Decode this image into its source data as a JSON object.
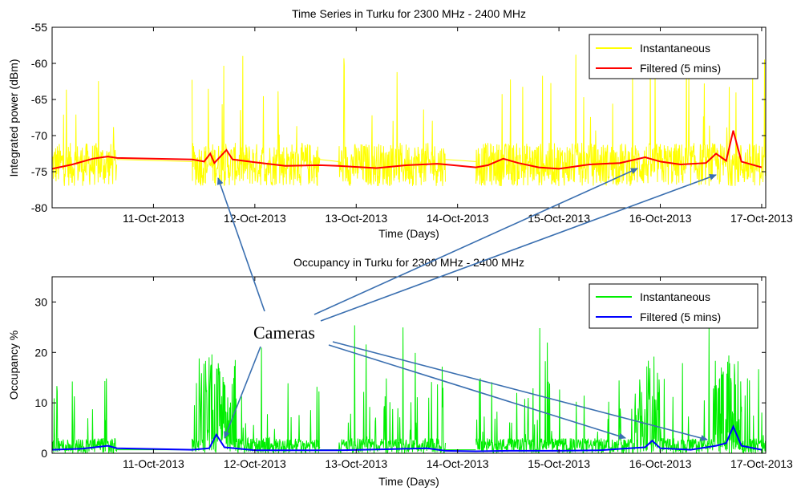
{
  "chart_data": [
    {
      "type": "line",
      "title": "Time Series in Turku for 2300 MHz - 2400 MHz",
      "xlabel": "Time (Days)",
      "ylabel": "Integrated power (dBm)",
      "ylim": [
        -80,
        -55
      ],
      "yticks": [
        "-55",
        "-60",
        "-65",
        "-70",
        "-75",
        "-80"
      ],
      "xticks": [
        "11-Oct-2013",
        "12-Oct-2013",
        "13-Oct-2013",
        "14-Oct-2013",
        "15-Oct-2013",
        "16-Oct-2013",
        "17-Oct-2013"
      ],
      "legend_position": "top-right",
      "series": [
        {
          "name": "Instantaneous",
          "color": "#ffff00",
          "gaps_days": [
            [
              10.64,
              11.38
            ],
            [
              12.64,
              12.82
            ],
            [
              13.88,
              14.18
            ]
          ],
          "baseline_dBm": -74.5,
          "spread_dBm": [
            -77,
            -71
          ],
          "spike_max_dBm": -58.5
        },
        {
          "name": "Filtered (5 mins)",
          "color": "#ff0000",
          "points": [
            [
              10.0,
              -74.6
            ],
            [
              10.2,
              -74.0
            ],
            [
              10.4,
              -73.2
            ],
            [
              10.55,
              -72.9
            ],
            [
              10.64,
              -73.1
            ],
            [
              11.38,
              -73.3
            ],
            [
              11.5,
              -73.6
            ],
            [
              11.56,
              -72.5
            ],
            [
              11.6,
              -73.8
            ],
            [
              11.72,
              -72.0
            ],
            [
              11.78,
              -73.3
            ],
            [
              12.0,
              -73.7
            ],
            [
              12.3,
              -74.2
            ],
            [
              12.64,
              -74.1
            ],
            [
              12.82,
              -74.2
            ],
            [
              13.2,
              -74.5
            ],
            [
              13.5,
              -74.1
            ],
            [
              13.8,
              -73.9
            ],
            [
              13.88,
              -74.0
            ],
            [
              14.18,
              -74.4
            ],
            [
              14.3,
              -74.1
            ],
            [
              14.45,
              -73.2
            ],
            [
              14.6,
              -73.8
            ],
            [
              14.8,
              -74.4
            ],
            [
              15.0,
              -74.6
            ],
            [
              15.3,
              -74.0
            ],
            [
              15.6,
              -73.8
            ],
            [
              15.85,
              -73.0
            ],
            [
              16.0,
              -73.6
            ],
            [
              16.2,
              -74.0
            ],
            [
              16.45,
              -73.8
            ],
            [
              16.55,
              -72.5
            ],
            [
              16.65,
              -73.5
            ],
            [
              16.72,
              -69.3
            ],
            [
              16.8,
              -73.6
            ],
            [
              17.0,
              -74.4
            ]
          ]
        }
      ]
    },
    {
      "type": "line",
      "title": "Occupancy in Turku for 2300 MHz - 2400 MHz",
      "xlabel": "Time (Days)",
      "ylabel": "Occupancy %",
      "ylim": [
        0,
        35
      ],
      "yticks": [
        "0",
        "10",
        "20",
        "30"
      ],
      "xticks": [
        "11-Oct-2013",
        "12-Oct-2013",
        "13-Oct-2013",
        "14-Oct-2013",
        "15-Oct-2013",
        "16-Oct-2013",
        "17-Oct-2013"
      ],
      "legend_position": "top-right",
      "series": [
        {
          "name": "Instantaneous",
          "color": "#00ee00",
          "gaps_days": [
            [
              10.64,
              11.38
            ],
            [
              12.64,
              12.82
            ],
            [
              13.88,
              14.18
            ]
          ],
          "baseline_pct": 1.5,
          "spike_max_pct": 25.8
        },
        {
          "name": "Filtered (5 mins)",
          "color": "#0000ff",
          "points": [
            [
              10.0,
              0.7
            ],
            [
              10.3,
              0.9
            ],
            [
              10.55,
              1.5
            ],
            [
              10.64,
              1.0
            ],
            [
              11.38,
              0.7
            ],
            [
              11.55,
              1.0
            ],
            [
              11.62,
              3.7
            ],
            [
              11.7,
              1.2
            ],
            [
              12.0,
              0.6
            ],
            [
              12.64,
              0.6
            ],
            [
              12.82,
              0.6
            ],
            [
              13.3,
              0.8
            ],
            [
              13.7,
              1.0
            ],
            [
              13.88,
              0.5
            ],
            [
              14.18,
              0.4
            ],
            [
              14.5,
              0.5
            ],
            [
              15.0,
              0.5
            ],
            [
              15.4,
              0.6
            ],
            [
              15.85,
              1.2
            ],
            [
              15.92,
              2.5
            ],
            [
              16.0,
              1.0
            ],
            [
              16.3,
              0.7
            ],
            [
              16.55,
              1.5
            ],
            [
              16.65,
              2.0
            ],
            [
              16.72,
              5.3
            ],
            [
              16.8,
              1.5
            ],
            [
              17.0,
              0.7
            ]
          ]
        }
      ]
    }
  ],
  "annotation": {
    "label": "Cameras",
    "arrow_color": "#3a6fb0"
  }
}
